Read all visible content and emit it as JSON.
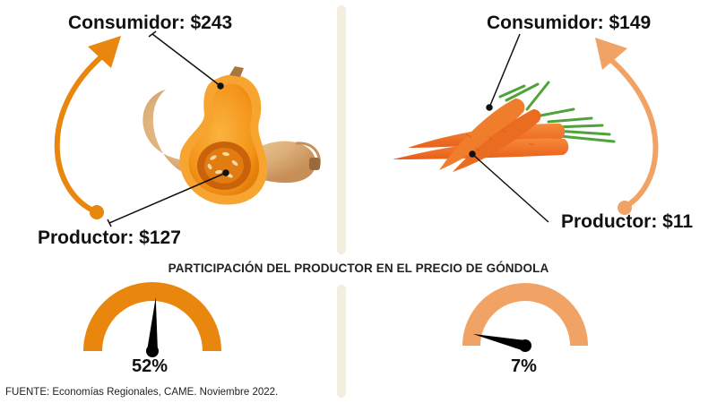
{
  "left": {
    "consumer_label": "Consumidor: $243",
    "producer_label": "Productor: $127",
    "producer_share": "52%",
    "producer_share_value": 52,
    "accent_color": "#e8860e"
  },
  "right": {
    "consumer_label": "Consumidor: $149",
    "producer_label": "Productor: $11",
    "producer_share": "7%",
    "producer_share_value": 7,
    "accent_color": "#f0a364"
  },
  "section_title": "PARTICIPACIÓN DEL PRODUCTOR EN EL PRECIO DE GÓNDOLA",
  "source": "FUENTE: Economías Regionales, CAME. Noviembre 2022.",
  "divider_color": "#f3eedd",
  "icons": [
    "butternut-squash-icon",
    "carrots-icon",
    "curved-arrow-icon",
    "gauge-icon"
  ]
}
